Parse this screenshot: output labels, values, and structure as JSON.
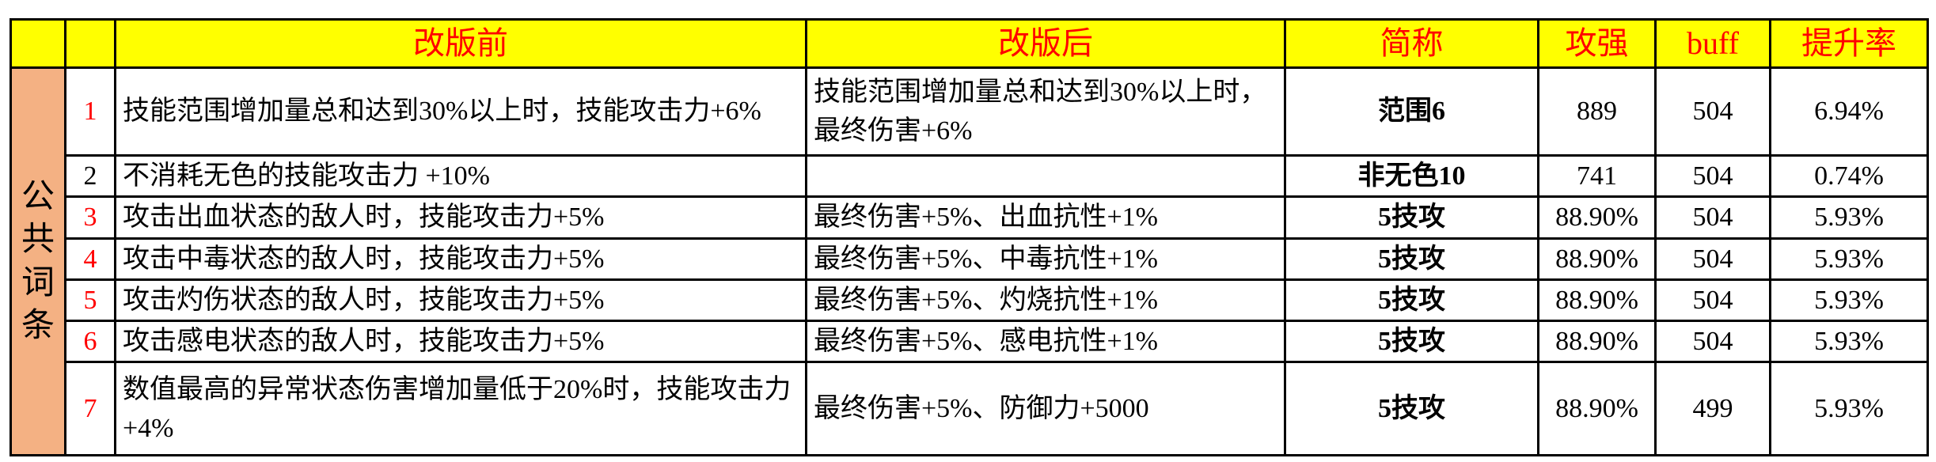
{
  "header": [
    "",
    "",
    "改版前",
    "改版后",
    "简称",
    "攻强",
    "buff",
    "提升率"
  ],
  "group_label": "公共词条",
  "rows": [
    {
      "no": "1",
      "no_red": true,
      "before": "技能范围增加量总和达到30%以上时，技能攻击力+6%",
      "after": "技能范围增加量总和达到30%以上时，最终伤害+6%",
      "short": "范围6",
      "atk": "889",
      "buff": "504",
      "rate": "6.94%"
    },
    {
      "no": "2",
      "no_red": false,
      "before": "不消耗无色的技能攻击力 +10%",
      "after": "",
      "short": "非无色10",
      "atk": "741",
      "buff": "504",
      "rate": "0.74%"
    },
    {
      "no": "3",
      "no_red": true,
      "before": "攻击出血状态的敌人时，技能攻击力+5%",
      "after": "最终伤害+5%、出血抗性+1%",
      "short": "5技攻",
      "atk": "88.90%",
      "buff": "504",
      "rate": "5.93%"
    },
    {
      "no": "4",
      "no_red": true,
      "before": "攻击中毒状态的敌人时，技能攻击力+5%",
      "after": "最终伤害+5%、中毒抗性+1%",
      "short": "5技攻",
      "atk": "88.90%",
      "buff": "504",
      "rate": "5.93%"
    },
    {
      "no": "5",
      "no_red": true,
      "before": "攻击灼伤状态的敌人时，技能攻击力+5%",
      "after": "最终伤害+5%、灼烧抗性+1%",
      "short": "5技攻",
      "atk": "88.90%",
      "buff": "504",
      "rate": "5.93%"
    },
    {
      "no": "6",
      "no_red": true,
      "before": "攻击感电状态的敌人时，技能攻击力+5%",
      "after": "最终伤害+5%、感电抗性+1%",
      "short": "5技攻",
      "atk": "88.90%",
      "buff": "504",
      "rate": "5.93%"
    },
    {
      "no": "7",
      "no_red": true,
      "before": "数值最高的异常状态伤害增加量低于20%时，技能攻击力 +4%",
      "after": "最终伤害+5%、防御力+5000",
      "short": "5技攻",
      "atk": "88.90%",
      "buff": "499",
      "rate": "5.93%"
    }
  ]
}
